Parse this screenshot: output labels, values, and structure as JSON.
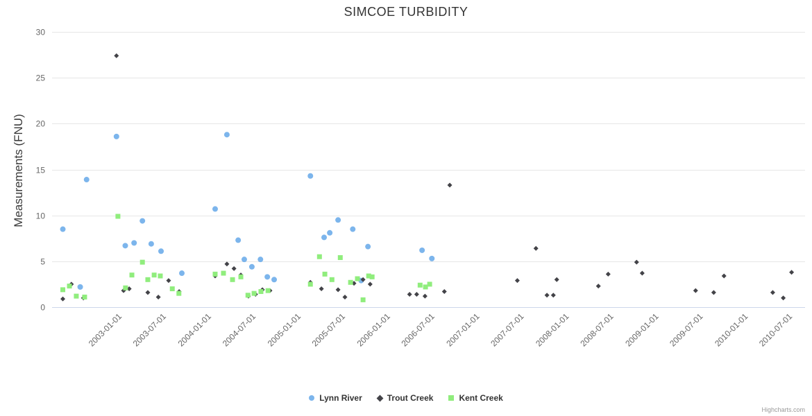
{
  "chart_data": {
    "type": "scatter",
    "title": "SIMCOE TURBIDITY",
    "xlabel": "",
    "ylabel": "Measurements (FNU)",
    "ylim": [
      0,
      30
    ],
    "yticks": [
      0,
      5,
      10,
      15,
      20,
      25,
      30
    ],
    "x_axis_type": "datetime",
    "x_range": [
      "2002-04-01",
      "2010-09-01"
    ],
    "x_ticks": [
      "2003-01-01",
      "2003-07-01",
      "2004-01-01",
      "2004-07-01",
      "2005-01-01",
      "2005-07-01",
      "2006-01-01",
      "2006-07-01",
      "2007-01-01",
      "2007-07-01",
      "2008-01-01",
      "2008-07-01",
      "2009-01-01",
      "2009-07-01",
      "2010-01-01",
      "2010-07-01"
    ],
    "grid": "horizontal",
    "legend_position": "bottom-center",
    "credits": "Highcharts.com",
    "series": [
      {
        "name": "Lynn River",
        "marker": "circle",
        "color": "#7cb5ec",
        "points": [
          [
            "2002-05-15",
            8.5
          ],
          [
            "2002-07-25",
            2.2
          ],
          [
            "2002-08-20",
            13.9
          ],
          [
            "2002-12-20",
            18.6
          ],
          [
            "2003-01-25",
            6.7
          ],
          [
            "2003-03-02",
            7.0
          ],
          [
            "2003-04-05",
            9.4
          ],
          [
            "2003-05-11",
            6.9
          ],
          [
            "2003-06-20",
            6.1
          ],
          [
            "2003-09-13",
            3.7
          ],
          [
            "2004-01-27",
            10.7
          ],
          [
            "2004-03-15",
            18.8
          ],
          [
            "2004-04-30",
            7.3
          ],
          [
            "2004-05-25",
            5.2
          ],
          [
            "2004-06-25",
            4.4
          ],
          [
            "2004-07-30",
            5.2
          ],
          [
            "2004-08-27",
            3.3
          ],
          [
            "2004-09-24",
            3.0
          ],
          [
            "2005-02-19",
            14.3
          ],
          [
            "2005-04-16",
            7.6
          ],
          [
            "2005-05-09",
            8.1
          ],
          [
            "2005-06-12",
            9.5
          ],
          [
            "2005-08-11",
            8.5
          ],
          [
            "2005-09-14",
            2.9
          ],
          [
            "2005-10-12",
            6.6
          ],
          [
            "2006-05-21",
            6.2
          ],
          [
            "2006-06-30",
            5.3
          ]
        ]
      },
      {
        "name": "Trout Creek",
        "marker": "diamond",
        "color": "#434348",
        "points": [
          [
            "2002-05-15",
            0.9
          ],
          [
            "2002-06-19",
            2.5
          ],
          [
            "2002-08-07",
            1.0
          ],
          [
            "2002-12-20",
            27.4
          ],
          [
            "2003-01-18",
            1.8
          ],
          [
            "2003-02-10",
            2.0
          ],
          [
            "2003-04-27",
            1.6
          ],
          [
            "2003-06-09",
            1.1
          ],
          [
            "2003-07-21",
            2.9
          ],
          [
            "2003-09-02",
            1.7
          ],
          [
            "2004-01-27",
            3.4
          ],
          [
            "2004-03-15",
            4.7
          ],
          [
            "2004-04-13",
            4.2
          ],
          [
            "2004-05-11",
            3.5
          ],
          [
            "2004-06-11",
            1.2
          ],
          [
            "2004-07-10",
            1.4
          ],
          [
            "2004-08-07",
            1.9
          ],
          [
            "2004-09-07",
            1.8
          ],
          [
            "2005-02-19",
            2.7
          ],
          [
            "2005-04-05",
            2.0
          ],
          [
            "2005-06-12",
            1.9
          ],
          [
            "2005-07-10",
            1.1
          ],
          [
            "2005-08-16",
            2.6
          ],
          [
            "2005-09-22",
            3.0
          ],
          [
            "2005-10-21",
            2.5
          ],
          [
            "2006-03-31",
            1.4
          ],
          [
            "2006-04-29",
            1.4
          ],
          [
            "2006-06-02",
            1.2
          ],
          [
            "2006-08-20",
            1.7
          ],
          [
            "2006-09-11",
            13.3
          ],
          [
            "2007-06-14",
            2.9
          ],
          [
            "2007-08-29",
            6.4
          ],
          [
            "2007-10-13",
            1.3
          ],
          [
            "2007-11-08",
            1.3
          ],
          [
            "2007-11-22",
            3.0
          ],
          [
            "2008-05-10",
            2.3
          ],
          [
            "2008-06-19",
            3.6
          ],
          [
            "2008-10-13",
            4.9
          ],
          [
            "2008-11-05",
            3.7
          ],
          [
            "2009-06-11",
            1.8
          ],
          [
            "2009-08-24",
            1.6
          ],
          [
            "2009-10-05",
            3.4
          ],
          [
            "2010-04-22",
            1.6
          ],
          [
            "2010-06-04",
            1.0
          ],
          [
            "2010-07-08",
            3.8
          ]
        ]
      },
      {
        "name": "Kent Creek",
        "marker": "square",
        "color": "#90ed7d",
        "points": [
          [
            "2002-05-15",
            1.9
          ],
          [
            "2002-06-11",
            2.3
          ],
          [
            "2002-07-09",
            1.2
          ],
          [
            "2002-08-12",
            1.1
          ],
          [
            "2002-12-26",
            9.9
          ],
          [
            "2003-01-26",
            2.1
          ],
          [
            "2003-02-21",
            3.5
          ],
          [
            "2003-04-05",
            4.9
          ],
          [
            "2003-04-27",
            3.0
          ],
          [
            "2003-05-23",
            3.5
          ],
          [
            "2003-06-17",
            3.4
          ],
          [
            "2003-08-05",
            2.0
          ],
          [
            "2003-09-01",
            1.5
          ],
          [
            "2004-01-27",
            3.6
          ],
          [
            "2004-03-01",
            3.7
          ],
          [
            "2004-04-07",
            3.0
          ],
          [
            "2004-05-11",
            3.3
          ],
          [
            "2004-06-09",
            1.3
          ],
          [
            "2004-07-04",
            1.5
          ],
          [
            "2004-08-01",
            1.7
          ],
          [
            "2004-08-30",
            1.8
          ],
          [
            "2005-02-19",
            2.5
          ],
          [
            "2005-03-28",
            5.5
          ],
          [
            "2005-04-19",
            3.6
          ],
          [
            "2005-05-18",
            3.0
          ],
          [
            "2005-06-21",
            5.4
          ],
          [
            "2005-08-02",
            2.7
          ],
          [
            "2005-08-30",
            3.1
          ],
          [
            "2005-09-22",
            0.8
          ],
          [
            "2005-10-15",
            3.4
          ],
          [
            "2005-10-29",
            3.3
          ],
          [
            "2006-05-13",
            2.4
          ],
          [
            "2006-06-04",
            2.2
          ],
          [
            "2006-06-21",
            2.5
          ]
        ]
      }
    ]
  }
}
